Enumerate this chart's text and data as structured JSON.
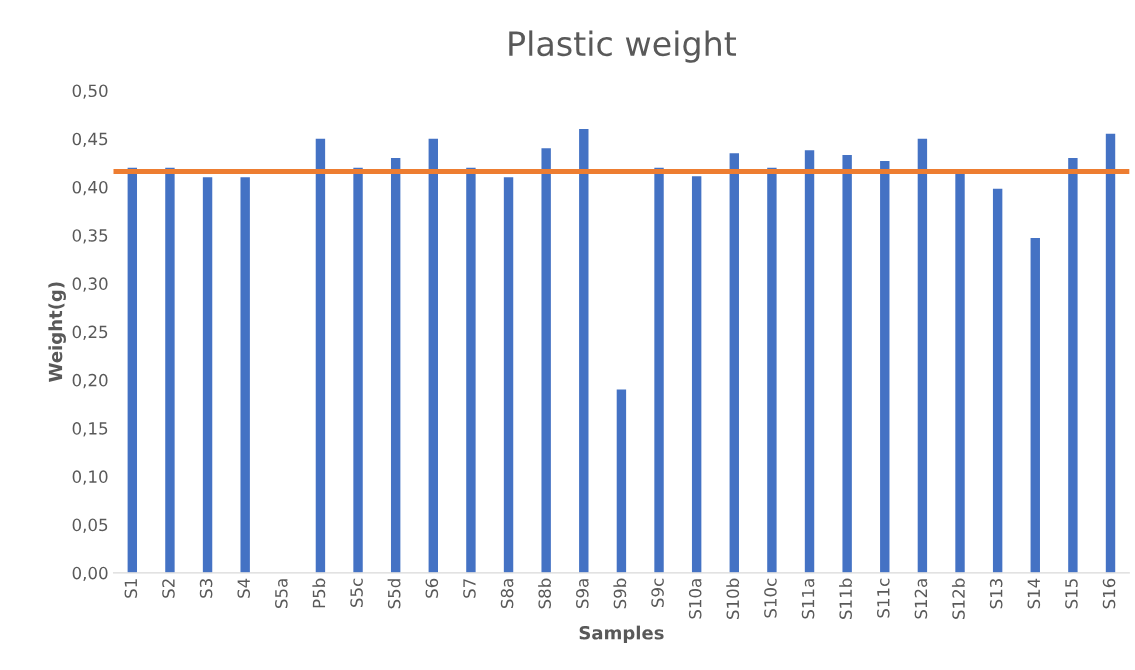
{
  "chart_data": {
    "type": "bar",
    "title": "Plastic weight",
    "xlabel": "Samples",
    "ylabel": "Weight(g)",
    "categories": [
      "S1",
      "S2",
      "S3",
      "S4",
      "S5a",
      "P5b",
      "S5c",
      "S5d",
      "S6",
      "S7",
      "S8a",
      "S8b",
      "S9a",
      "S9b",
      "S9c",
      "S10a",
      "S10b",
      "S10c",
      "S11a",
      "S11b",
      "S11c",
      "S12a",
      "S12b",
      "S13",
      "S14",
      "S15",
      "S16"
    ],
    "values": [
      0.42,
      0.42,
      0.41,
      0.41,
      null,
      0.45,
      0.42,
      0.43,
      0.45,
      0.42,
      0.41,
      0.44,
      0.46,
      0.19,
      0.42,
      0.411,
      0.435,
      0.42,
      0.438,
      0.433,
      0.427,
      0.45,
      0.415,
      0.398,
      0.347,
      0.43,
      0.455
    ],
    "color": "#4472c4",
    "ylim": [
      0,
      0.5
    ],
    "yticks": [
      {
        "value": 0,
        "label": "0,00"
      },
      {
        "value": 0.05,
        "label": "0,05"
      },
      {
        "value": 0.1,
        "label": "0,10"
      },
      {
        "value": 0.15,
        "label": "0,15"
      },
      {
        "value": 0.2,
        "label": "0,20"
      },
      {
        "value": 0.25,
        "label": "0,25"
      },
      {
        "value": 0.3,
        "label": "0,30"
      },
      {
        "value": 0.35,
        "label": "0,35"
      },
      {
        "value": 0.4,
        "label": "0,40"
      },
      {
        "value": 0.45,
        "label": "0,45"
      },
      {
        "value": 0.5,
        "label": "0,50"
      }
    ],
    "ref_lines": [
      {
        "axis": "y",
        "value": 0.416,
        "label": null,
        "color": "#ed7d31"
      }
    ],
    "grid": false
  }
}
